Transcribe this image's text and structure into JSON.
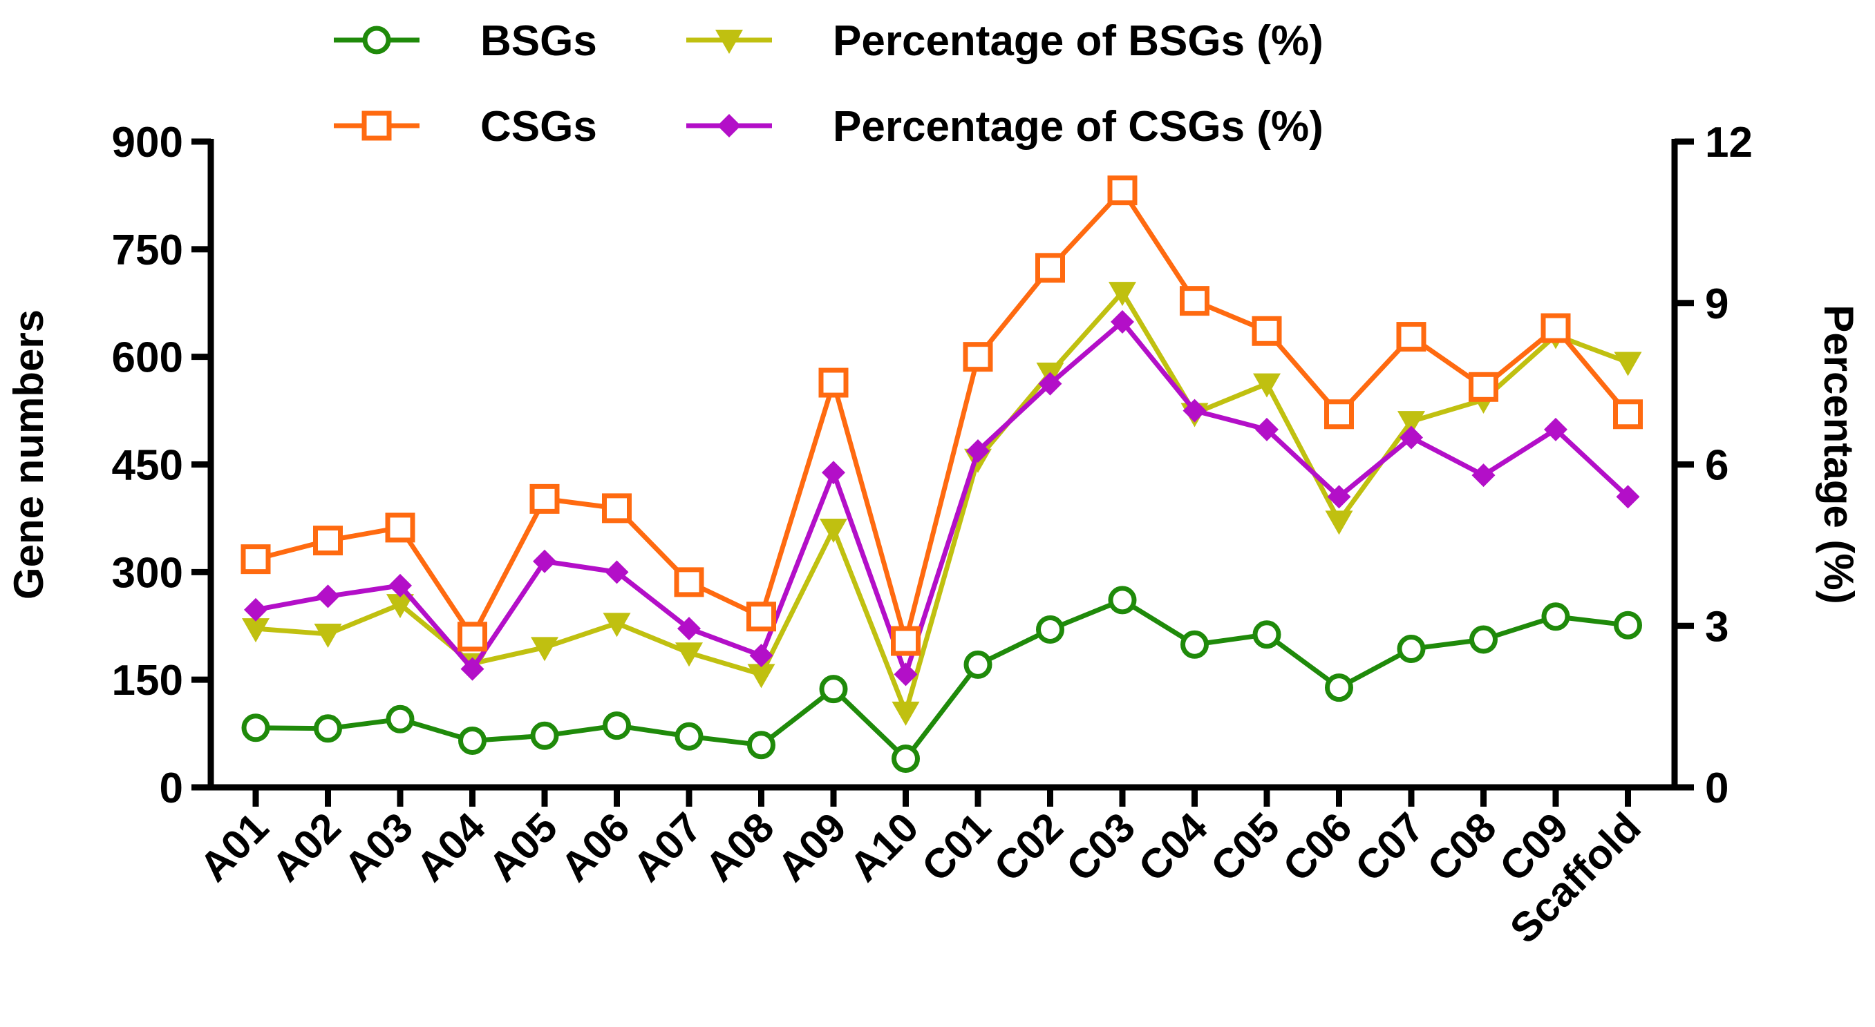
{
  "chart_data": {
    "type": "line",
    "categories": [
      "A01",
      "A02",
      "A03",
      "A04",
      "A05",
      "A06",
      "A07",
      "A08",
      "A09",
      "A10",
      "C01",
      "C02",
      "C03",
      "C04",
      "C05",
      "C06",
      "C07",
      "C08",
      "C09",
      "Scaffold"
    ],
    "ylabel": "Gene numbers",
    "y2label": "Percentage (%)",
    "ylim": [
      0,
      900
    ],
    "y2lim": [
      0,
      12
    ],
    "yticks": [
      0,
      150,
      300,
      450,
      600,
      750,
      900
    ],
    "y2ticks": [
      0,
      3,
      6,
      9,
      12
    ],
    "legend_position": "top",
    "series": [
      {
        "name": "BSGs",
        "axis": "left",
        "color": "#1f8a0a",
        "marker": "circle",
        "values": [
          83,
          82,
          95,
          65,
          72,
          86,
          71,
          59,
          137,
          40,
          171,
          220,
          261,
          199,
          213,
          139,
          193,
          206,
          238,
          226
        ]
      },
      {
        "name": "CSGs",
        "axis": "left",
        "color": "#ff6a10",
        "marker": "square",
        "values": [
          318,
          344,
          362,
          210,
          402,
          389,
          286,
          238,
          564,
          204,
          600,
          724,
          832,
          678,
          636,
          520,
          628,
          558,
          640,
          520
        ]
      },
      {
        "name": "Percentage of BSGs (%)",
        "axis": "right",
        "color": "#c0c010",
        "marker": "triangle-down",
        "values": [
          2.95,
          2.85,
          3.4,
          2.3,
          2.6,
          3.05,
          2.5,
          2.1,
          4.8,
          1.4,
          6.1,
          7.7,
          9.2,
          6.95,
          7.5,
          4.95,
          6.8,
          7.2,
          8.4,
          7.9
        ]
      },
      {
        "name": "Percentage of CSGs (%)",
        "axis": "right",
        "color": "#b30fc8",
        "marker": "diamond",
        "values": [
          3.3,
          3.55,
          3.75,
          2.2,
          4.2,
          4.0,
          2.95,
          2.45,
          5.85,
          2.1,
          6.25,
          7.5,
          8.65,
          7.0,
          6.65,
          5.4,
          6.5,
          5.8,
          6.65,
          5.4
        ]
      }
    ]
  }
}
